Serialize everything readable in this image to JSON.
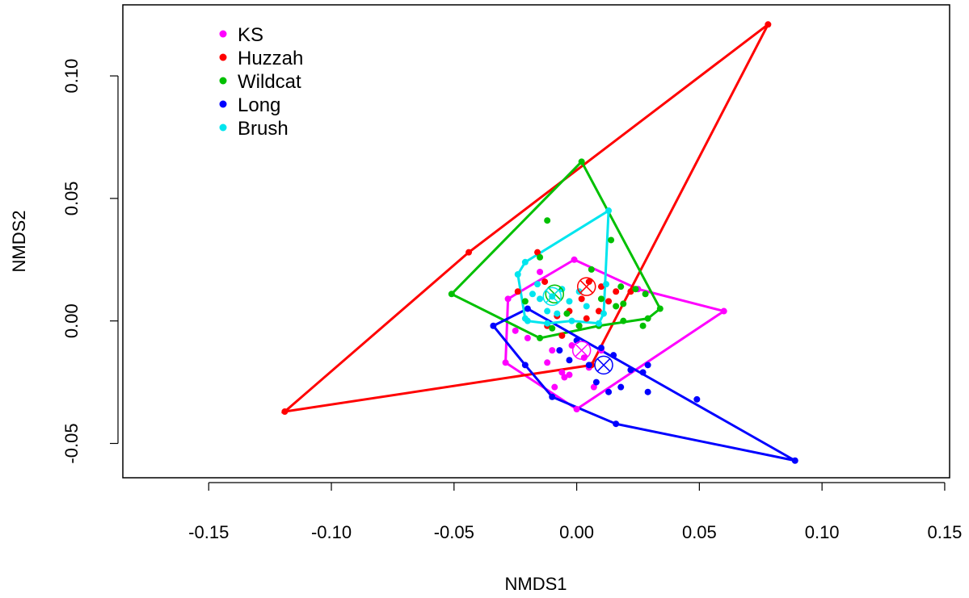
{
  "chart_data": {
    "type": "scatter",
    "title": "",
    "xlabel": "NMDS1",
    "ylabel": "NMDS2",
    "xlim": [
      -0.185,
      0.152
    ],
    "ylim": [
      -0.064,
      0.129
    ],
    "x_ticks": [
      -0.15,
      -0.1,
      -0.05,
      0.0,
      0.05,
      0.1,
      0.15
    ],
    "x_tick_labels": [
      "-0.15",
      "-0.10",
      "-0.05",
      "0.00",
      "0.05",
      "0.10",
      "0.15"
    ],
    "y_ticks": [
      -0.05,
      0.0,
      0.05,
      0.1
    ],
    "y_tick_labels": [
      "-0.05",
      "0.00",
      "0.05",
      "0.10"
    ],
    "grid": false,
    "legend_position": "top-left",
    "series": [
      {
        "name": "KS",
        "color": "#ff00ff",
        "points": [
          [
            -0.001,
            0.025
          ],
          [
            -0.015,
            0.02
          ],
          [
            0.025,
            0.013
          ],
          [
            0.06,
            0.004
          ],
          [
            -0.028,
            0.009
          ],
          [
            -0.029,
            -0.017
          ],
          [
            -0.02,
            -0.007
          ],
          [
            -0.01,
            -0.012
          ],
          [
            -0.002,
            -0.01
          ],
          [
            0.003,
            -0.015
          ],
          [
            0.005,
            -0.019
          ],
          [
            -0.006,
            -0.021
          ],
          [
            -0.009,
            -0.027
          ],
          [
            -0.005,
            -0.023
          ],
          [
            0.0,
            -0.036
          ],
          [
            0.007,
            -0.027
          ],
          [
            -0.025,
            -0.004
          ],
          [
            0.01,
            -0.012
          ],
          [
            -0.012,
            -0.017
          ],
          [
            -0.003,
            -0.022
          ]
        ],
        "hull": [
          [
            -0.001,
            0.025
          ],
          [
            0.025,
            0.013
          ],
          [
            0.06,
            0.004
          ],
          [
            0.0,
            -0.036
          ],
          [
            -0.029,
            -0.017
          ],
          [
            -0.028,
            0.009
          ]
        ],
        "centroid": [
          0.002,
          -0.012
        ]
      },
      {
        "name": "Huzzah",
        "color": "#ff0000",
        "points": [
          [
            0.078,
            0.121
          ],
          [
            -0.044,
            0.028
          ],
          [
            -0.119,
            -0.037
          ],
          [
            0.006,
            -0.018
          ],
          [
            -0.016,
            0.028
          ],
          [
            -0.024,
            0.012
          ],
          [
            -0.013,
            0.016
          ],
          [
            0.002,
            0.009
          ],
          [
            0.005,
            0.016
          ],
          [
            0.01,
            0.014
          ],
          [
            0.013,
            0.008
          ],
          [
            0.016,
            0.012
          ],
          [
            0.022,
            0.012
          ],
          [
            0.009,
            0.004
          ],
          [
            -0.003,
            0.004
          ],
          [
            -0.008,
            0.002
          ],
          [
            -0.012,
            -0.002
          ],
          [
            0.001,
            -0.002
          ],
          [
            -0.006,
            -0.006
          ],
          [
            0.004,
            0.001
          ]
        ],
        "hull": [
          [
            0.078,
            0.121
          ],
          [
            0.006,
            -0.018
          ],
          [
            -0.119,
            -0.037
          ],
          [
            -0.044,
            0.028
          ]
        ],
        "centroid": [
          0.004,
          0.014
        ]
      },
      {
        "name": "Wildcat",
        "color": "#00c000",
        "points": [
          [
            0.002,
            0.065
          ],
          [
            -0.012,
            0.041
          ],
          [
            0.014,
            0.033
          ],
          [
            -0.051,
            0.011
          ],
          [
            -0.015,
            0.026
          ],
          [
            0.006,
            0.021
          ],
          [
            0.024,
            0.013
          ],
          [
            0.034,
            0.005
          ],
          [
            0.029,
            0.001
          ],
          [
            0.027,
            -0.002
          ],
          [
            0.019,
            0.0
          ],
          [
            0.009,
            -0.002
          ],
          [
            0.001,
            -0.002
          ],
          [
            -0.01,
            -0.003
          ],
          [
            -0.015,
            -0.007
          ],
          [
            0.016,
            0.006
          ],
          [
            0.01,
            0.009
          ],
          [
            -0.004,
            0.003
          ],
          [
            -0.021,
            0.008
          ],
          [
            0.018,
            0.014
          ],
          [
            0.028,
            0.011
          ],
          [
            0.019,
            0.007
          ]
        ],
        "hull": [
          [
            0.002,
            0.065
          ],
          [
            0.034,
            0.005
          ],
          [
            0.029,
            0.001
          ],
          [
            0.009,
            -0.002
          ],
          [
            -0.015,
            -0.007
          ],
          [
            -0.051,
            0.011
          ]
        ],
        "centroid": [
          -0.009,
          0.011
        ]
      },
      {
        "name": "Long",
        "color": "#0000ff",
        "points": [
          [
            -0.034,
            -0.002
          ],
          [
            -0.02,
            0.005
          ],
          [
            0.089,
            -0.057
          ],
          [
            0.016,
            -0.042
          ],
          [
            -0.01,
            -0.031
          ],
          [
            -0.021,
            -0.018
          ],
          [
            0.0,
            -0.008
          ],
          [
            0.01,
            -0.011
          ],
          [
            0.015,
            -0.014
          ],
          [
            0.018,
            -0.027
          ],
          [
            0.013,
            -0.029
          ],
          [
            0.022,
            -0.02
          ],
          [
            0.027,
            -0.021
          ],
          [
            0.029,
            -0.018
          ],
          [
            0.029,
            -0.029
          ],
          [
            0.049,
            -0.032
          ],
          [
            0.005,
            -0.018
          ],
          [
            -0.007,
            -0.012
          ],
          [
            -0.003,
            -0.016
          ],
          [
            0.008,
            -0.025
          ]
        ],
        "hull": [
          [
            -0.034,
            -0.002
          ],
          [
            -0.02,
            0.005
          ],
          [
            0.089,
            -0.057
          ],
          [
            0.016,
            -0.042
          ],
          [
            -0.01,
            -0.031
          ],
          [
            -0.021,
            -0.018
          ]
        ],
        "centroid": [
          0.011,
          -0.018
        ]
      },
      {
        "name": "Brush",
        "color": "#00e5ee",
        "points": [
          [
            0.013,
            0.045
          ],
          [
            -0.021,
            0.024
          ],
          [
            -0.024,
            0.019
          ],
          [
            -0.021,
            0.001
          ],
          [
            -0.02,
            0.0
          ],
          [
            -0.012,
            -0.001
          ],
          [
            -0.002,
            0.0
          ],
          [
            0.009,
            -0.001
          ],
          [
            0.011,
            0.003
          ],
          [
            0.012,
            0.015
          ],
          [
            -0.016,
            0.015
          ],
          [
            -0.01,
            0.01
          ],
          [
            -0.006,
            0.013
          ],
          [
            -0.003,
            0.008
          ],
          [
            0.001,
            0.012
          ],
          [
            -0.015,
            0.009
          ],
          [
            -0.008,
            0.003
          ],
          [
            0.004,
            0.006
          ],
          [
            -0.012,
            0.004
          ],
          [
            -0.018,
            0.011
          ]
        ],
        "hull": [
          [
            0.013,
            0.045
          ],
          [
            0.011,
            0.003
          ],
          [
            0.009,
            -0.001
          ],
          [
            -0.002,
            0.0
          ],
          [
            -0.012,
            -0.001
          ],
          [
            -0.02,
            0.0
          ],
          [
            -0.021,
            0.001
          ],
          [
            -0.024,
            0.019
          ],
          [
            -0.021,
            0.024
          ]
        ],
        "centroid": [
          -0.01,
          0.01
        ]
      }
    ]
  }
}
